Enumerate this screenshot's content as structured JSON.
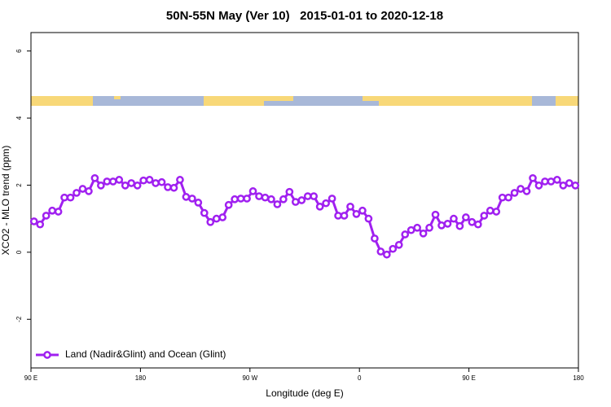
{
  "chart_data": {
    "type": "line",
    "title": "50N-55N May (Ver 10)   2015-01-01 to 2020-12-18",
    "x_label": "Longitude (deg E)",
    "y_label": "XCO2 - MLO trend (ppm)",
    "xlim": [
      90,
      540
    ],
    "ylim": [
      -3.45,
      6.55
    ],
    "xticks": [
      {
        "value": 90,
        "label": "90 E"
      },
      180,
      {
        "value": 270,
        "label": "90 W"
      },
      {
        "value": 360,
        "label": "0"
      },
      {
        "value": 450,
        "label": "90 E"
      },
      {
        "value": 540,
        "label": "180"
      }
    ],
    "yticks": [
      6,
      4,
      2,
      0,
      -2
    ],
    "legend": "bottom-left",
    "x": [
      92.5,
      97.5,
      102.5,
      107.5,
      112.5,
      117.5,
      122.5,
      127.5,
      132.5,
      137.5,
      142.5,
      147.5,
      152.5,
      157.5,
      162.5,
      167.5,
      172.5,
      177.5,
      182.5,
      187.5,
      192.5,
      197.5,
      202.5,
      207.5,
      212.5,
      217.5,
      222.5,
      227.5,
      232.5,
      237.5,
      242.5,
      247.5,
      252.5,
      257.5,
      262.5,
      267.5,
      272.5,
      277.5,
      282.5,
      287.5,
      292.5,
      297.5,
      302.5,
      307.5,
      312.5,
      317.5,
      322.5,
      327.5,
      332.5,
      337.5,
      342.5,
      347.5,
      352.5,
      357.5,
      362.5,
      367.5,
      372.5,
      377.5,
      382.5,
      387.5,
      392.5,
      397.5,
      402.5,
      407.5,
      412.5,
      417.5,
      422.5,
      427.5,
      432.5,
      437.5,
      442.5,
      447.5,
      452.5,
      457.5,
      462.5,
      467.5,
      472.5,
      477.5,
      482.5,
      487.5,
      492.5,
      497.5,
      502.5,
      507.5,
      512.5,
      517.5,
      522.5,
      527.5,
      532.5,
      537.5
    ],
    "series": [
      {
        "name": "Land (Nadir&Glint) and Ocean (Glint)",
        "color": "#a020f0",
        "values": [
          0.92,
          0.83,
          1.09,
          1.24,
          1.21,
          1.63,
          1.63,
          1.77,
          1.89,
          1.82,
          2.21,
          1.99,
          2.11,
          2.11,
          2.16,
          1.99,
          2.06,
          1.99,
          2.14,
          2.16,
          2.06,
          2.09,
          1.94,
          1.92,
          2.16,
          1.65,
          1.6,
          1.48,
          1.17,
          0.9,
          1.0,
          1.04,
          1.41,
          1.58,
          1.6,
          1.6,
          1.82,
          1.67,
          1.63,
          1.58,
          1.43,
          1.58,
          1.8,
          1.5,
          1.55,
          1.67,
          1.67,
          1.36,
          1.46,
          1.6,
          1.09,
          1.09,
          1.36,
          1.14,
          1.24,
          1.0,
          0.41,
          0.02,
          -0.07,
          0.1,
          0.22,
          0.53,
          0.66,
          0.73,
          0.56,
          0.73,
          1.12,
          0.8,
          0.85,
          1.0,
          0.78,
          1.04,
          0.9,
          0.83,
          1.09,
          1.24,
          1.21,
          1.63,
          1.63,
          1.77,
          1.89,
          1.82,
          2.21,
          1.99,
          2.11,
          2.11,
          2.16,
          1.99,
          2.06,
          1.99
        ]
      }
    ]
  }
}
